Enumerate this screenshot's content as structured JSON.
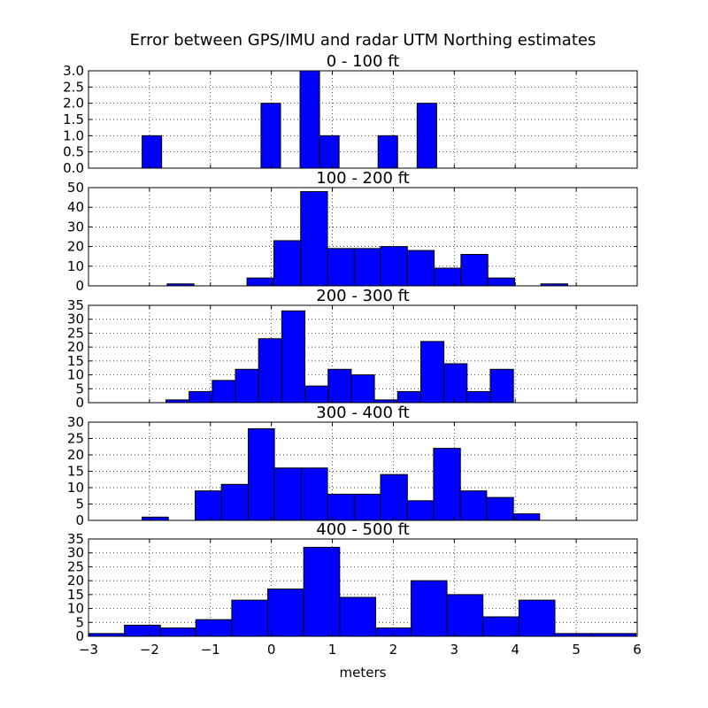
{
  "chart_data": {
    "type": "histogram",
    "title": "Error between GPS/IMU and radar UTM Northing estimates",
    "xlabel": "meters",
    "xlim": [
      -3,
      6
    ],
    "xticks": [
      "−3",
      "−2",
      "−1",
      "0",
      "1",
      "2",
      "3",
      "4",
      "5",
      "6"
    ],
    "grid": true,
    "bar_color": "#0000ff",
    "panels": [
      {
        "title": "0 - 100 ft",
        "ylim": [
          0,
          3
        ],
        "yticks": [
          "0.0",
          "0.5",
          "1.0",
          "1.5",
          "2.0",
          "2.5",
          "3.0"
        ],
        "bins": [
          {
            "x0": -2.12,
            "x1": -1.8,
            "count": 1
          },
          {
            "x0": -0.17,
            "x1": 0.15,
            "count": 2
          },
          {
            "x0": 0.47,
            "x1": 0.79,
            "count": 3
          },
          {
            "x0": 0.79,
            "x1": 1.11,
            "count": 1
          },
          {
            "x0": 1.75,
            "x1": 2.07,
            "count": 1
          },
          {
            "x0": 2.39,
            "x1": 2.71,
            "count": 2
          }
        ]
      },
      {
        "title": "100 - 200 ft",
        "ylim": [
          0,
          50
        ],
        "yticks": [
          "0",
          "10",
          "20",
          "30",
          "40",
          "50"
        ],
        "bins": [
          {
            "x0": -1.71,
            "x1": -1.27,
            "count": 1
          },
          {
            "x0": -0.4,
            "x1": 0.04,
            "count": 4
          },
          {
            "x0": 0.04,
            "x1": 0.48,
            "count": 23
          },
          {
            "x0": 0.48,
            "x1": 0.92,
            "count": 48
          },
          {
            "x0": 0.92,
            "x1": 1.36,
            "count": 19
          },
          {
            "x0": 1.36,
            "x1": 1.79,
            "count": 19
          },
          {
            "x0": 1.79,
            "x1": 2.23,
            "count": 20
          },
          {
            "x0": 2.23,
            "x1": 2.67,
            "count": 18
          },
          {
            "x0": 2.67,
            "x1": 3.11,
            "count": 9
          },
          {
            "x0": 3.11,
            "x1": 3.55,
            "count": 16
          },
          {
            "x0": 3.55,
            "x1": 3.99,
            "count": 4
          },
          {
            "x0": 4.42,
            "x1": 4.86,
            "count": 1
          }
        ]
      },
      {
        "title": "200 - 300 ft",
        "ylim": [
          0,
          35
        ],
        "yticks": [
          "0",
          "5",
          "10",
          "15",
          "20",
          "25",
          "30",
          "35"
        ],
        "bins": [
          {
            "x0": -1.73,
            "x1": -1.35,
            "count": 1
          },
          {
            "x0": -1.35,
            "x1": -0.97,
            "count": 4
          },
          {
            "x0": -0.97,
            "x1": -0.59,
            "count": 8
          },
          {
            "x0": -0.59,
            "x1": -0.21,
            "count": 12
          },
          {
            "x0": -0.21,
            "x1": 0.17,
            "count": 23
          },
          {
            "x0": 0.17,
            "x1": 0.55,
            "count": 33
          },
          {
            "x0": 0.55,
            "x1": 0.93,
            "count": 6
          },
          {
            "x0": 0.93,
            "x1": 1.31,
            "count": 12
          },
          {
            "x0": 1.31,
            "x1": 1.69,
            "count": 10
          },
          {
            "x0": 1.69,
            "x1": 2.07,
            "count": 1
          },
          {
            "x0": 2.07,
            "x1": 2.45,
            "count": 4
          },
          {
            "x0": 2.45,
            "x1": 2.83,
            "count": 22
          },
          {
            "x0": 2.83,
            "x1": 3.21,
            "count": 14
          },
          {
            "x0": 3.21,
            "x1": 3.59,
            "count": 4
          },
          {
            "x0": 3.59,
            "x1": 3.97,
            "count": 12
          }
        ]
      },
      {
        "title": "300 - 400 ft",
        "ylim": [
          0,
          30
        ],
        "yticks": [
          "0",
          "5",
          "10",
          "15",
          "20",
          "25",
          "30"
        ],
        "bins": [
          {
            "x0": -2.12,
            "x1": -1.69,
            "count": 1
          },
          {
            "x0": -1.25,
            "x1": -0.82,
            "count": 9
          },
          {
            "x0": -0.82,
            "x1": -0.38,
            "count": 11
          },
          {
            "x0": -0.38,
            "x1": 0.05,
            "count": 28
          },
          {
            "x0": 0.05,
            "x1": 0.49,
            "count": 16
          },
          {
            "x0": 0.49,
            "x1": 0.92,
            "count": 16
          },
          {
            "x0": 0.92,
            "x1": 1.36,
            "count": 8
          },
          {
            "x0": 1.36,
            "x1": 1.79,
            "count": 8
          },
          {
            "x0": 1.79,
            "x1": 2.23,
            "count": 14
          },
          {
            "x0": 2.23,
            "x1": 2.66,
            "count": 6
          },
          {
            "x0": 2.66,
            "x1": 3.1,
            "count": 22
          },
          {
            "x0": 3.1,
            "x1": 3.53,
            "count": 9
          },
          {
            "x0": 3.53,
            "x1": 3.97,
            "count": 7
          },
          {
            "x0": 3.97,
            "x1": 4.4,
            "count": 2
          }
        ]
      },
      {
        "title": "400 - 500 ft",
        "ylim": [
          0,
          35
        ],
        "yticks": [
          "0",
          "5",
          "10",
          "15",
          "20",
          "25",
          "30",
          "35"
        ],
        "bins": [
          {
            "x0": -3.0,
            "x1": -2.41,
            "count": 1
          },
          {
            "x0": -2.41,
            "x1": -1.82,
            "count": 4
          },
          {
            "x0": -1.82,
            "x1": -1.24,
            "count": 3
          },
          {
            "x0": -1.24,
            "x1": -0.65,
            "count": 6
          },
          {
            "x0": -0.65,
            "x1": -0.06,
            "count": 13
          },
          {
            "x0": -0.06,
            "x1": 0.53,
            "count": 17
          },
          {
            "x0": 0.53,
            "x1": 1.12,
            "count": 32
          },
          {
            "x0": 1.12,
            "x1": 1.71,
            "count": 14
          },
          {
            "x0": 1.71,
            "x1": 2.29,
            "count": 3
          },
          {
            "x0": 2.29,
            "x1": 2.88,
            "count": 20
          },
          {
            "x0": 2.88,
            "x1": 3.47,
            "count": 15
          },
          {
            "x0": 3.47,
            "x1": 4.06,
            "count": 7
          },
          {
            "x0": 4.06,
            "x1": 4.65,
            "count": 13
          },
          {
            "x0": 4.65,
            "x1": 5.24,
            "count": 1
          },
          {
            "x0": 5.24,
            "x1": 5.98,
            "count": 1
          }
        ]
      }
    ]
  }
}
